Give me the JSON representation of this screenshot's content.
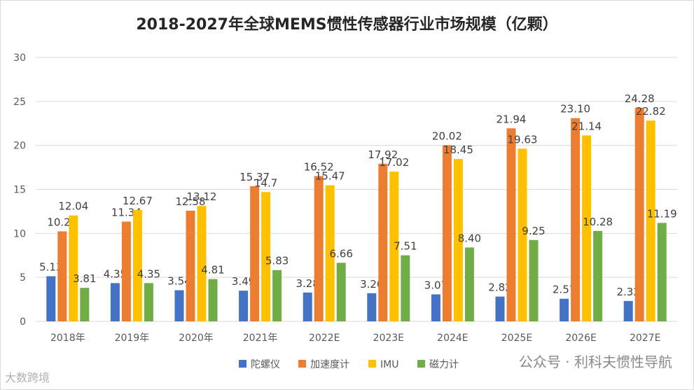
{
  "title": "2018-2027年全球MEMS惯性传感器行业市场规模（亿颗）",
  "watermark": "公众号 · 利科夫惯性导航",
  "corner_mark": "大数跨境",
  "chart_data": {
    "type": "bar",
    "title": "2018-2027年全球MEMS惯性传感器行业市场规模（亿颗）",
    "categories": [
      "2018年",
      "2019年",
      "2020年",
      "2021年",
      "2022E",
      "2023E",
      "2024E",
      "2025E",
      "2026E",
      "2027E"
    ],
    "ylim": [
      0,
      30
    ],
    "yticks": [
      0,
      5,
      10,
      15,
      20,
      25,
      30
    ],
    "grid": true,
    "legend_position": "bottom",
    "series": [
      {
        "name": "陀螺仪",
        "color": "#4472c4",
        "values": [
          5.13,
          4.35,
          3.54,
          3.49,
          3.28,
          3.2,
          3.07,
          2.82,
          2.57,
          2.32
        ],
        "labels": [
          "5.13",
          "4.35",
          "3.54",
          "3.49",
          "3.28",
          "3.20",
          "3.07",
          "2.82",
          "2.57",
          "2.32"
        ]
      },
      {
        "name": "加速度计",
        "color": "#ed7d31",
        "values": [
          10.23,
          11.34,
          12.58,
          15.37,
          16.52,
          17.92,
          20.02,
          21.94,
          23.1,
          24.28
        ],
        "labels": [
          "10.23",
          "11.34",
          "12.58",
          "15.37",
          "16.52",
          "17.92",
          "20.02",
          "21.94",
          "23.10",
          "24.28"
        ]
      },
      {
        "name": "IMU",
        "color": "#ffc000",
        "values": [
          12.04,
          12.67,
          13.12,
          14.7,
          15.47,
          17.02,
          18.45,
          19.63,
          21.14,
          22.82
        ],
        "labels": [
          "12.04",
          "12.67",
          "13.12",
          "14.7",
          "15.47",
          "17.02",
          "18.45",
          "19.63",
          "21.14",
          "22.82"
        ]
      },
      {
        "name": "磁力计",
        "color": "#70ad47",
        "values": [
          3.81,
          4.35,
          4.81,
          5.83,
          6.66,
          7.51,
          8.4,
          9.25,
          10.28,
          11.19
        ],
        "labels": [
          "3.81",
          "4.35",
          "4.81",
          "5.83",
          "6.66",
          "7.51",
          "8.40",
          "9.25",
          "10.28",
          "11.19"
        ]
      }
    ]
  }
}
